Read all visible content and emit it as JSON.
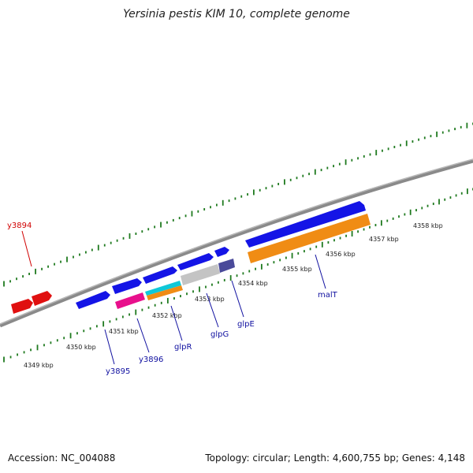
{
  "title": "Yersinia pestis KIM 10, complete genome",
  "footer": {
    "accession": "Accession: NC_004088",
    "summary": "Topology: circular; Length: 4,600,755 bp; Genes: 4,148"
  },
  "colors": {
    "backbone": "#8a8a8a",
    "ticks": "#1f7a1f",
    "label_blue": "#1010a0",
    "label_red": "#d00000",
    "gene_blue": "#1414e6",
    "gene_red": "#e01010",
    "gene_orange": "#f08c14",
    "gene_magenta": "#e8108c",
    "gene_cyan": "#10c8d8",
    "gene_grey": "#c4c4c4",
    "gene_slate": "#4a4a9a"
  },
  "scale_labels": [
    "4349 kbp",
    "4350 kbp",
    "4351 kbp",
    "4352 kbp",
    "4353 kbp",
    "4354 kbp",
    "4355 kbp",
    "4356 kbp",
    "4357 kbp",
    "4358 kbp"
  ],
  "genes": [
    {
      "name": "y3894",
      "color": "red"
    },
    {
      "name": "y3895",
      "color": "blue"
    },
    {
      "name": "y3896",
      "color": "blue"
    },
    {
      "name": "glpR",
      "color": "blue"
    },
    {
      "name": "glpG",
      "color": "blue"
    },
    {
      "name": "glpE",
      "color": "blue"
    },
    {
      "name": "malT",
      "color": "blue"
    }
  ]
}
